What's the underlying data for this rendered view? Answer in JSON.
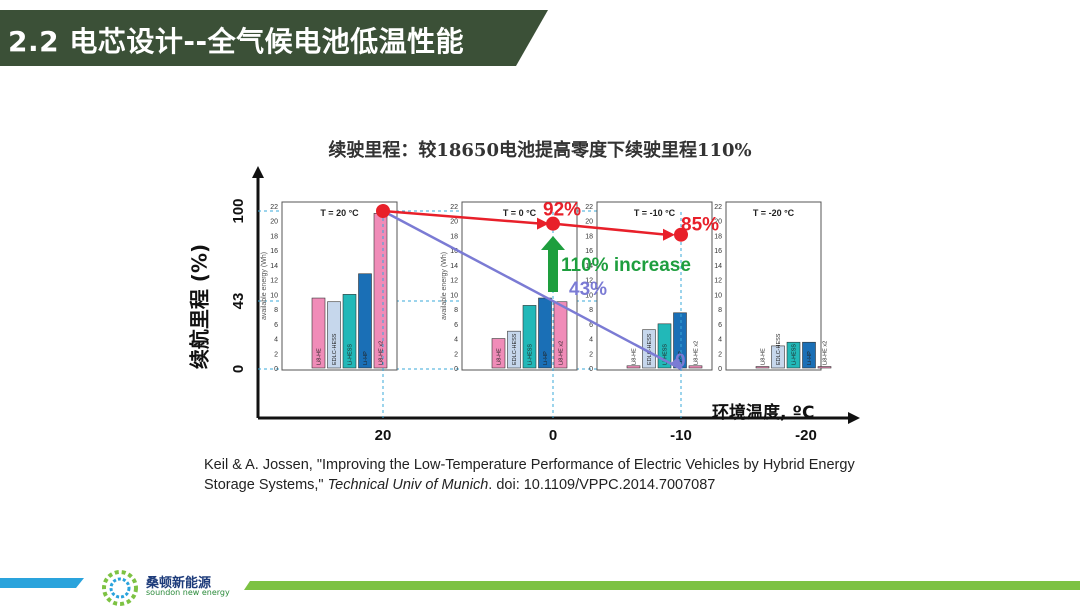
{
  "header": {
    "title": "2.2 电芯设计--全气候电池低温性能"
  },
  "chart_data": {
    "type": "bar",
    "title": "续驶里程：较18650电池提高零度下续驶里程110%",
    "ylabel": "续航里程 (%)",
    "xlabel": "环境温度, ºC",
    "y_ticks": [
      "100",
      "43",
      "0"
    ],
    "x_ticks": [
      "20",
      "0",
      "-10",
      "-20"
    ],
    "inset_axis_label": "available energy (Wh)",
    "inset_ticks": [
      "22",
      "20",
      "18",
      "16",
      "14",
      "12",
      "10",
      "8",
      "6",
      "4",
      "2",
      "0"
    ],
    "inset_ylim": [
      0,
      22
    ],
    "insets": [
      {
        "label": "T = 20 °C",
        "bars": [
          {
            "name": "Li8-HE",
            "value": 9.5,
            "color": "#f08cb8"
          },
          {
            "name": "EDLC-HESS",
            "value": 9.0,
            "color": "#c6d7ec"
          },
          {
            "name": "Li-HESS",
            "value": 10.0,
            "color": "#22b8b8"
          },
          {
            "name": "Li-HP",
            "value": 12.8,
            "color": "#1a6fb6"
          },
          {
            "name": "Li8-HE x2",
            "value": 21.0,
            "color": "#f08cb8"
          }
        ]
      },
      {
        "label": "T = 0 °C",
        "bars": [
          {
            "name": "Li8-HE",
            "value": 4.0,
            "color": "#f08cb8"
          },
          {
            "name": "EDLC-HESS",
            "value": 5.0,
            "color": "#c6d7ec"
          },
          {
            "name": "Li-HESS",
            "value": 8.5,
            "color": "#22b8b8"
          },
          {
            "name": "Li-HP",
            "value": 9.5,
            "color": "#1a6fb6"
          },
          {
            "name": "Li8-HE x2",
            "value": 9.0,
            "color": "#f08cb8"
          }
        ]
      },
      {
        "label": "T = -10 °C",
        "bars": [
          {
            "name": "Li8-HE",
            "value": 0.3,
            "color": "#f08cb8"
          },
          {
            "name": "EDLC-HESS",
            "value": 5.2,
            "color": "#c6d7ec"
          },
          {
            "name": "Li-HESS",
            "value": 6.0,
            "color": "#22b8b8"
          },
          {
            "name": "Li-HP",
            "value": 7.5,
            "color": "#1a6fb6"
          },
          {
            "name": "Li8-HE x2",
            "value": 0.3,
            "color": "#f08cb8"
          }
        ]
      },
      {
        "label": "T = -20 °C",
        "bars": [
          {
            "name": "Li8-HE",
            "value": 0.2,
            "color": "#f08cb8"
          },
          {
            "name": "EDLC-HESS",
            "value": 3.0,
            "color": "#c6d7ec"
          },
          {
            "name": "Li-HESS",
            "value": 3.5,
            "color": "#22b8b8"
          },
          {
            "name": "Li-HP",
            "value": 3.5,
            "color": "#1a6fb6"
          },
          {
            "name": "Li8-HE x2",
            "value": 0.2,
            "color": "#f08cb8"
          }
        ]
      }
    ],
    "red_series": {
      "temps": [
        20,
        0,
        -10
      ],
      "values": [
        100,
        92,
        85
      ],
      "labels": [
        "",
        "92%",
        "85%"
      ],
      "color": "#e8202a"
    },
    "blue_series": {
      "temps": [
        20,
        0,
        -10
      ],
      "values": [
        100,
        43,
        0
      ],
      "labels": [
        "",
        "43%",
        "0"
      ],
      "color": "#7b7bd4"
    },
    "increase_label": "110% increase",
    "increase_color": "#1e9e3e"
  },
  "citation": {
    "text": "Keil & A. Jossen, \"Improving the Low-Temperature Performance of Electric Vehicles by Hybrid Energy Storage Systems,\" ",
    "italic": "Technical Univ of Munich",
    "tail": ".  doi: 10.1109/VPPC.2014.7007087"
  },
  "footer": {
    "brand": "桑顿新能源",
    "brand_en": "soundon new energy",
    "accent": "#7dc243",
    "blue": "#2aa3dc"
  }
}
